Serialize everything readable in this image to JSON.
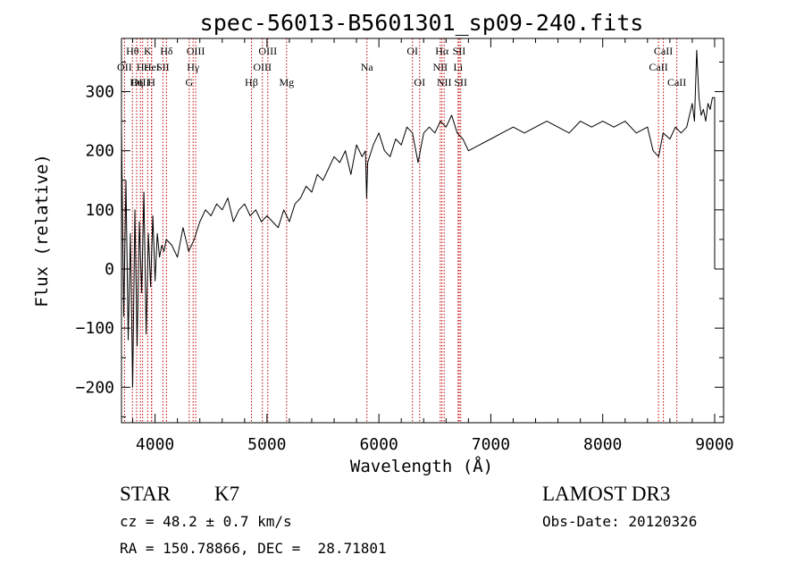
{
  "chart_data": {
    "type": "line",
    "title": "spec-56013-B5601301_sp09-240.fits",
    "xlabel": "Wavelength (Å)",
    "ylabel": "Flux (relative)",
    "xlim": [
      3700,
      9080
    ],
    "ylim": [
      -260,
      390
    ],
    "xticks": [
      4000,
      5000,
      6000,
      7000,
      8000,
      9000
    ],
    "yticks": [
      -200,
      -100,
      0,
      100,
      200,
      300
    ],
    "series": [
      {
        "name": "Flux",
        "x": [
          3700,
          3720,
          3740,
          3760,
          3780,
          3800,
          3820,
          3840,
          3860,
          3880,
          3900,
          3920,
          3940,
          3960,
          3980,
          4000,
          4020,
          4040,
          4060,
          4080,
          4100,
          4150,
          4200,
          4250,
          4300,
          4350,
          4400,
          4450,
          4500,
          4550,
          4600,
          4650,
          4700,
          4750,
          4800,
          4850,
          4900,
          4950,
          5000,
          5050,
          5100,
          5150,
          5200,
          5250,
          5300,
          5350,
          5400,
          5450,
          5500,
          5550,
          5600,
          5650,
          5700,
          5750,
          5800,
          5850,
          5880,
          5890,
          5900,
          5950,
          6000,
          6050,
          6100,
          6150,
          6200,
          6250,
          6300,
          6350,
          6400,
          6450,
          6500,
          6550,
          6600,
          6650,
          6700,
          6750,
          6800,
          6900,
          7000,
          7100,
          7200,
          7300,
          7400,
          7500,
          7600,
          7700,
          7800,
          7900,
          8000,
          8100,
          8200,
          8300,
          8400,
          8450,
          8500,
          8540,
          8600,
          8650,
          8700,
          8750,
          8800,
          8820,
          8840,
          8860,
          8880,
          8900,
          8920,
          8940,
          8960,
          8980,
          9000,
          9000
        ],
        "y": [
          240,
          -80,
          150,
          -120,
          60,
          -200,
          100,
          -130,
          80,
          -40,
          130,
          -110,
          60,
          -30,
          90,
          -20,
          60,
          20,
          40,
          30,
          50,
          40,
          20,
          70,
          30,
          50,
          80,
          100,
          90,
          110,
          100,
          120,
          80,
          100,
          110,
          90,
          100,
          80,
          90,
          80,
          70,
          100,
          80,
          110,
          120,
          140,
          130,
          160,
          150,
          170,
          190,
          180,
          200,
          160,
          210,
          190,
          200,
          120,
          180,
          210,
          230,
          200,
          190,
          220,
          210,
          240,
          230,
          180,
          230,
          240,
          230,
          250,
          240,
          260,
          230,
          220,
          200,
          210,
          220,
          230,
          240,
          230,
          240,
          250,
          240,
          230,
          250,
          240,
          250,
          240,
          250,
          230,
          240,
          200,
          190,
          230,
          220,
          240,
          230,
          240,
          280,
          250,
          370,
          290,
          260,
          270,
          250,
          280,
          270,
          290,
          290,
          0
        ]
      }
    ],
    "line_labels": [
      {
        "label": "Hθ",
        "x": 3798,
        "row": 1
      },
      {
        "label": "OII",
        "x": 3727,
        "row": 2
      },
      {
        "label": "OIII",
        "x": 3869,
        "row": 3
      },
      {
        "label": "K",
        "x": 3934,
        "row": 1
      },
      {
        "label": "Hε",
        "x": 3889,
        "row": 2
      },
      {
        "label": "Hη",
        "x": 3835,
        "row": 3
      },
      {
        "label": "HeI",
        "x": 3970,
        "row": 2
      },
      {
        "label": "H",
        "x": 3968,
        "row": 3
      },
      {
        "label": "Hδ",
        "x": 4102,
        "row": 1
      },
      {
        "label": "SII",
        "x": 4070,
        "row": 2
      },
      {
        "label": "OIII",
        "x": 4363,
        "row": 1
      },
      {
        "label": "Hγ",
        "x": 4340,
        "row": 2
      },
      {
        "label": "G",
        "x": 4305,
        "row": 3
      },
      {
        "label": "Hβ",
        "x": 4861,
        "row": 3
      },
      {
        "label": "OIII",
        "x": 5007,
        "row": 1
      },
      {
        "label": "OIII",
        "x": 4959,
        "row": 2
      },
      {
        "label": "Mg",
        "x": 5175,
        "row": 3
      },
      {
        "label": "Na",
        "x": 5893,
        "row": 2
      },
      {
        "label": "OI",
        "x": 6300,
        "row": 1
      },
      {
        "label": "OI",
        "x": 6364,
        "row": 3
      },
      {
        "label": "Hα",
        "x": 6563,
        "row": 1
      },
      {
        "label": "NII",
        "x": 6548,
        "row": 2
      },
      {
        "label": "NII",
        "x": 6583,
        "row": 3
      },
      {
        "label": "SII",
        "x": 6717,
        "row": 1
      },
      {
        "label": "Li",
        "x": 6708,
        "row": 2
      },
      {
        "label": "SII",
        "x": 6731,
        "row": 3
      },
      {
        "label": "CaII",
        "x": 8542,
        "row": 1
      },
      {
        "label": "CaII",
        "x": 8498,
        "row": 2
      },
      {
        "label": "CaII",
        "x": 8662,
        "row": 3
      }
    ],
    "line_color": "#000000",
    "marker_color": "#c00000"
  },
  "info": {
    "obj_class": "STAR",
    "subclass": "K7",
    "survey": "LAMOST DR3",
    "cz": "cz = 48.2 ± 0.7 km/s",
    "obs_date": "Obs-Date: 20120326",
    "coords": "RA = 150.78866, DEC =  28.71801"
  }
}
